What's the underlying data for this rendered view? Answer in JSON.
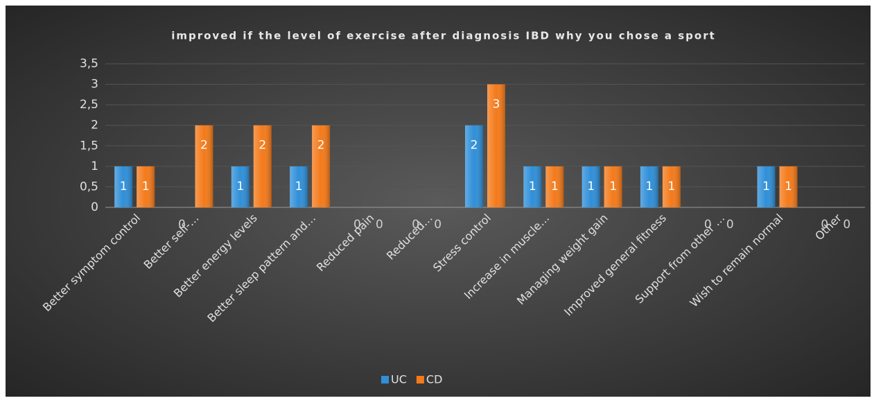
{
  "chart_data": {
    "type": "bar",
    "title": "improved if the level of exercise after diagnosis IBD why you chose a sport",
    "categories": [
      "Better symptom control",
      "Better self-…",
      "Better energy levels",
      "Better sleep pattern and…",
      "Reduced pain",
      "Reduced…",
      "Stress control",
      "Increase in muscle…",
      "Managing weight gain",
      "Improved general fitness",
      "Support from other …",
      "Wish to remain normal",
      "Other"
    ],
    "series": [
      {
        "name": "UC",
        "color": "#2f8fd8",
        "values": [
          1,
          0,
          1,
          1,
          0,
          0,
          2,
          1,
          1,
          1,
          0,
          1,
          0
        ]
      },
      {
        "name": "CD",
        "color": "#f47a1a",
        "values": [
          1,
          2,
          2,
          2,
          0,
          0,
          3,
          1,
          1,
          1,
          0,
          1,
          0
        ]
      }
    ],
    "ylim": [
      0,
      3.5
    ],
    "yticks": [
      0,
      {
        "value": 0.5,
        "label": "0,5"
      },
      1,
      {
        "value": 1.5,
        "label": "1,5"
      },
      2,
      {
        "value": 2.5,
        "label": "2,5"
      },
      3,
      {
        "value": 3.5,
        "label": "3,5"
      }
    ],
    "grid": true,
    "legend": "bottom"
  }
}
